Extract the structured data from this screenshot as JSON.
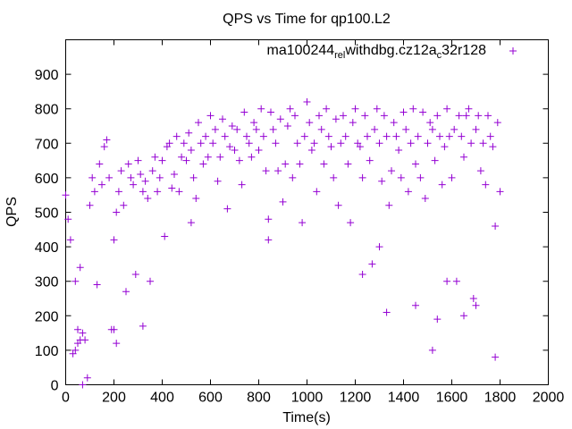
{
  "chart_data": {
    "type": "scatter",
    "title": "QPS vs Time for qp100.L2",
    "xlabel": "Time(s)",
    "ylabel": "QPS",
    "xlim": [
      0,
      2000
    ],
    "ylim": [
      0,
      1000
    ],
    "xticks": [
      0,
      200,
      400,
      600,
      800,
      1000,
      1200,
      1400,
      1600,
      1800,
      2000
    ],
    "yticks": [
      0,
      100,
      200,
      300,
      400,
      500,
      600,
      700,
      800,
      900
    ],
    "grid": false,
    "legend_placement": "top-right",
    "series": [
      {
        "name": "ma100244_rel_withdbg.cz12a_c32r128",
        "legend_parts": [
          "ma100244",
          "rel",
          "withdbg.cz12a",
          "c",
          "32r128"
        ],
        "color": "#9400d3",
        "x_start": 0,
        "x_step": 10,
        "values": [
          550,
          480,
          420,
          90,
          300,
          120,
          340,
          150,
          130,
          20,
          520,
          600,
          560,
          290,
          640,
          580,
          690,
          710,
          600,
          160,
          420,
          500,
          560,
          620,
          520,
          270,
          640,
          600,
          580,
          320,
          650,
          610,
          560,
          590,
          540,
          300,
          620,
          660,
          560,
          600,
          650,
          430,
          690,
          700,
          570,
          610,
          720,
          560,
          660,
          700,
          650,
          730,
          680,
          600,
          540,
          760,
          700,
          640,
          720,
          660,
          780,
          700,
          740,
          590,
          660,
          770,
          720,
          510,
          690,
          750,
          680,
          740,
          650,
          580,
          790,
          720,
          700,
          660,
          760,
          740,
          680,
          800,
          720,
          620,
          480,
          790,
          740,
          700,
          620,
          770,
          530,
          640,
          750,
          800,
          600,
          780,
          700,
          640,
          470,
          720,
          820,
          760,
          680,
          700,
          560,
          780,
          740,
          640,
          800,
          720,
          690,
          600,
          770,
          520,
          700,
          780,
          720,
          640,
          470,
          760,
          800,
          700,
          690,
          600,
          780,
          720,
          650,
          350,
          740,
          800,
          700,
          590,
          780,
          720,
          520,
          620,
          760,
          720,
          680,
          600,
          790,
          740,
          560,
          700,
          800,
          640,
          720,
          600,
          790,
          540,
          700,
          760,
          740,
          650,
          780,
          720,
          580,
          690,
          800,
          720,
          600,
          740,
          300,
          780,
          720,
          660,
          780,
          800,
          700,
          250,
          740,
          780,
          620,
          700,
          580,
          780,
          720,
          690,
          460,
          760,
          560
        ],
        "extra_points": [
          [
            40,
            100
          ],
          [
            50,
            160
          ],
          [
            60,
            130
          ],
          [
            70,
            0
          ],
          [
            200,
            160
          ],
          [
            210,
            120
          ],
          [
            320,
            170
          ],
          [
            520,
            470
          ],
          [
            840,
            420
          ],
          [
            1330,
            210
          ],
          [
            1450,
            230
          ],
          [
            1520,
            100
          ],
          [
            1540,
            190
          ],
          [
            1650,
            200
          ],
          [
            1700,
            230
          ],
          [
            1780,
            80
          ],
          [
            1230,
            320
          ],
          [
            1300,
            400
          ],
          [
            1580,
            300
          ]
        ]
      }
    ]
  }
}
